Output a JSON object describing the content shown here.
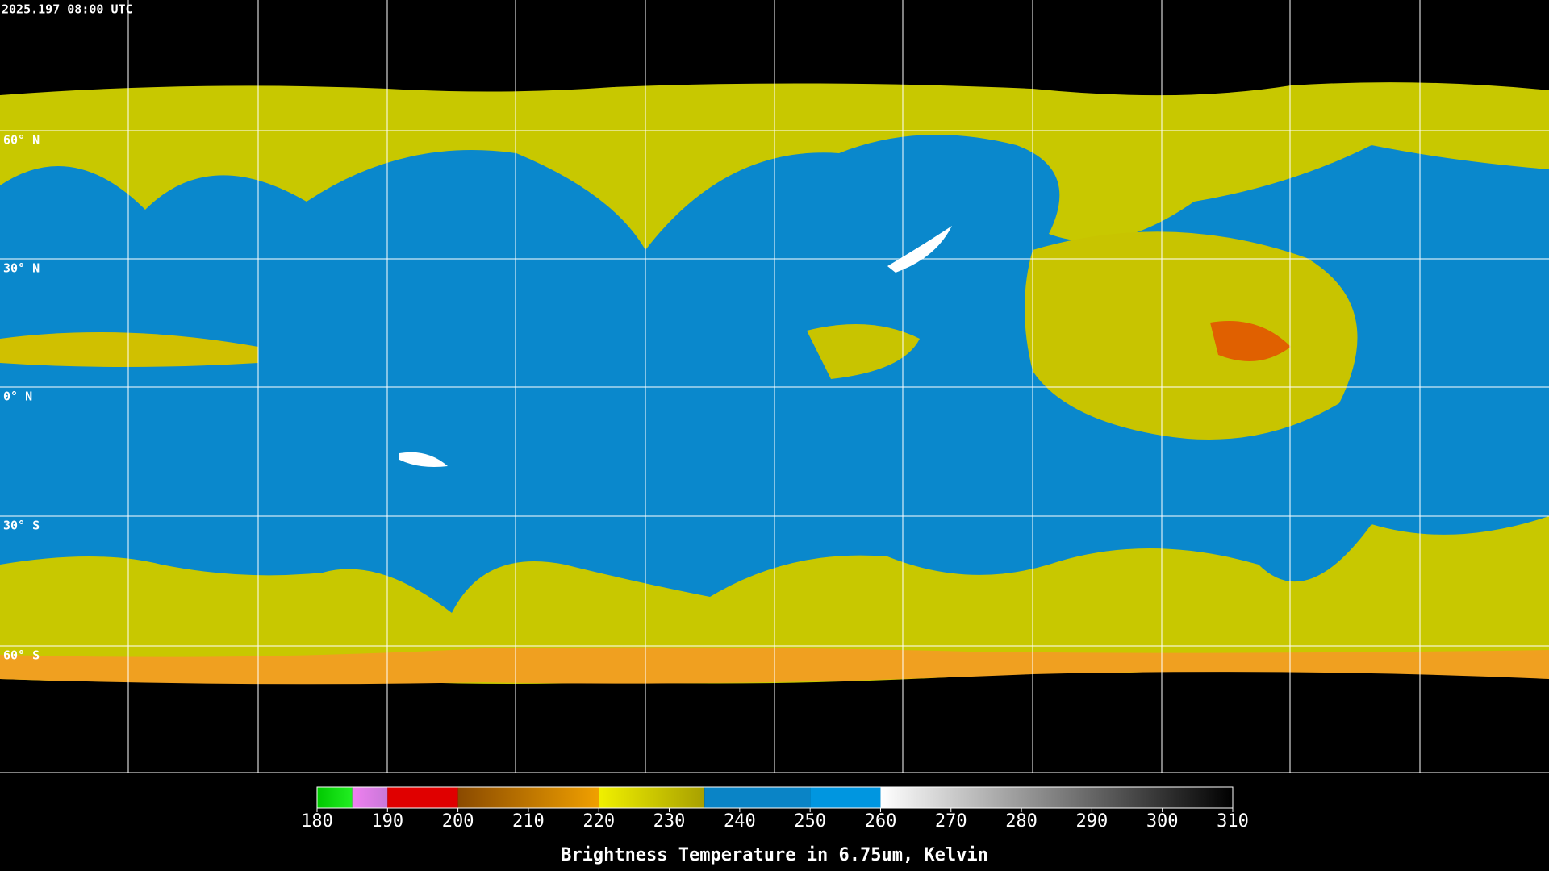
{
  "header": {
    "timestamp": "2025.197 08:00 UTC"
  },
  "map": {
    "lat_labels": [
      "60° N",
      "30° N",
      "0° N",
      "30° S",
      "60° S"
    ]
  },
  "colorbar": {
    "range": [
      180,
      310
    ],
    "ticks": [
      180,
      190,
      200,
      210,
      220,
      230,
      240,
      250,
      260,
      270,
      280,
      290,
      300,
      310
    ],
    "segments": [
      {
        "from": 180,
        "to": 185,
        "colors": [
          "#00c800",
          "#22ee22"
        ]
      },
      {
        "from": 185,
        "to": 190,
        "colors": [
          "#f080f0",
          "#c878d8"
        ]
      },
      {
        "from": 190,
        "to": 200,
        "colors": [
          "#e00000",
          "#e00000"
        ]
      },
      {
        "from": 200,
        "to": 220,
        "colors": [
          "#8a4a00",
          "#f0a000"
        ]
      },
      {
        "from": 220,
        "to": 235,
        "colors": [
          "#f0f000",
          "#a8a000"
        ]
      },
      {
        "from": 235,
        "to": 250,
        "colors": [
          "#0a84c6",
          "#0a84c6"
        ]
      },
      {
        "from": 250,
        "to": 260,
        "colors": [
          "#0096e0",
          "#0096e0"
        ]
      },
      {
        "from": 260,
        "to": 310,
        "colors": [
          "#ffffff",
          "#000000"
        ]
      }
    ],
    "title": "Brightness Temperature in 6.75um, Kelvin"
  }
}
